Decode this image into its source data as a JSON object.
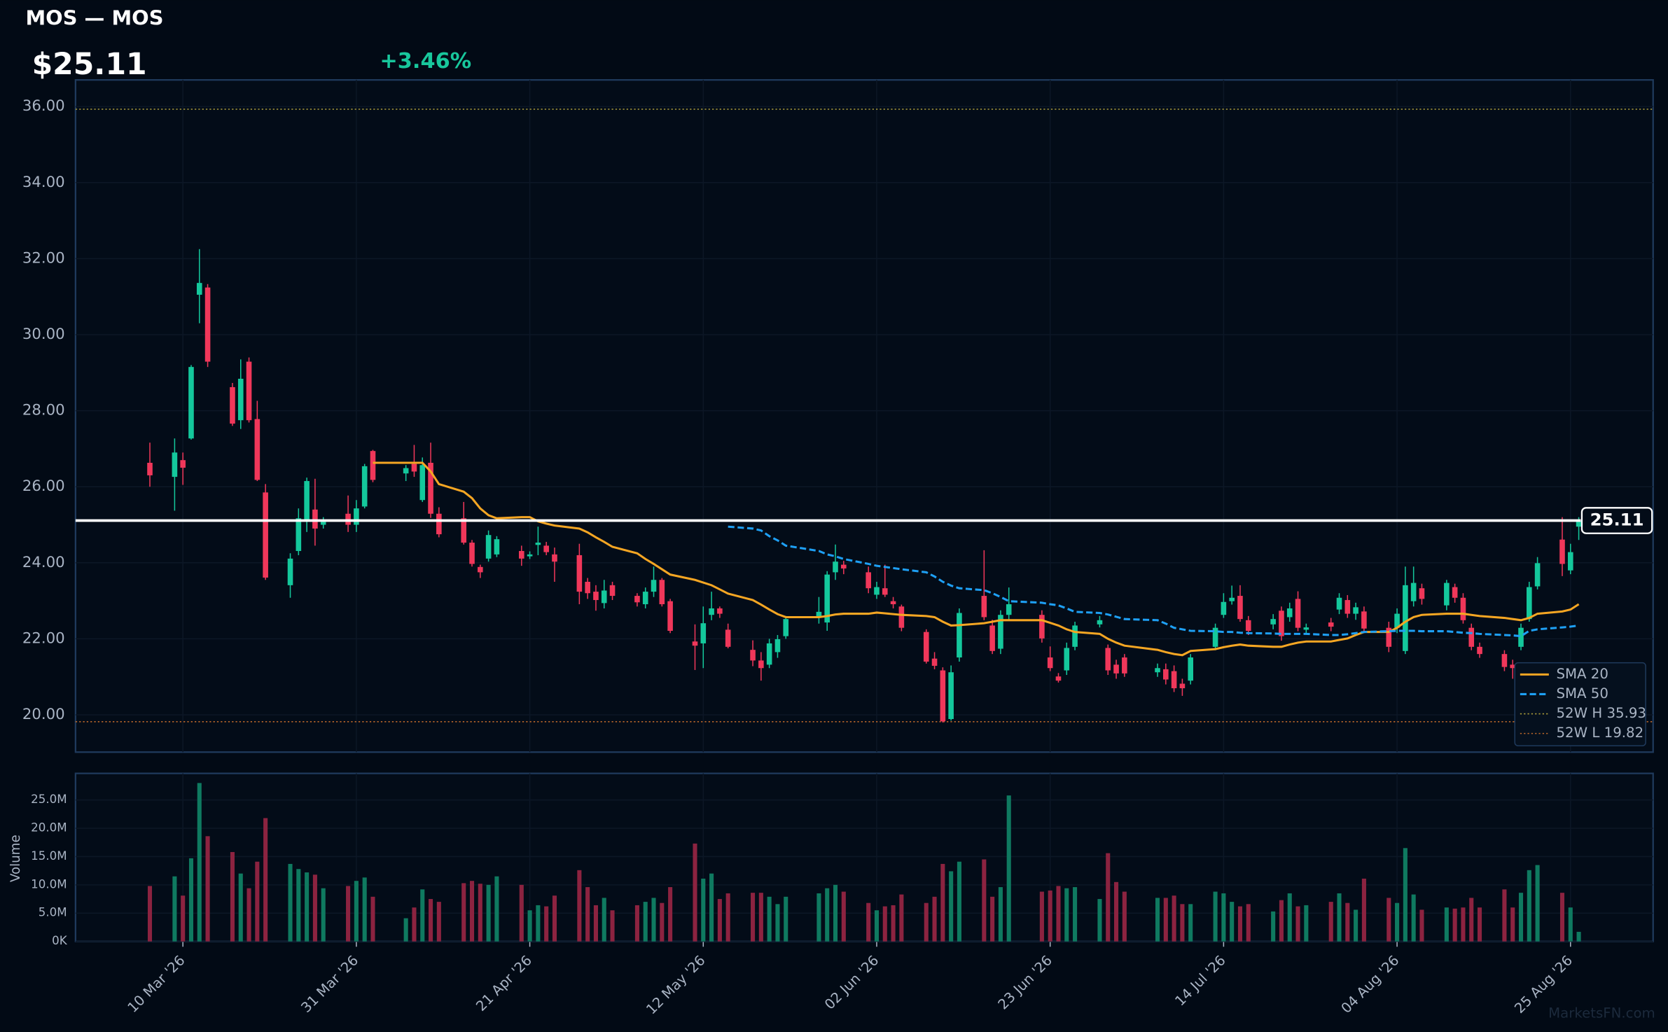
{
  "header": {
    "title": "MOS — MOS",
    "price": "$25.11",
    "change": "+3.46%",
    "watermark": "MarketsFN.com"
  },
  "chart_data": [
    {
      "type": "candlestick",
      "x": [
        "2026-03-06",
        "2026-03-09",
        "2026-03-10",
        "2026-03-11",
        "2026-03-12",
        "2026-03-13",
        "2026-03-16",
        "2026-03-17",
        "2026-03-18",
        "2026-03-19",
        "2026-03-20",
        "2026-03-23",
        "2026-03-24",
        "2026-03-25",
        "2026-03-26",
        "2026-03-27",
        "2026-03-30",
        "2026-03-31",
        "2026-04-01",
        "2026-04-02",
        "2026-04-06",
        "2026-04-07",
        "2026-04-08",
        "2026-04-09",
        "2026-04-10",
        "2026-04-13",
        "2026-04-14",
        "2026-04-15",
        "2026-04-16",
        "2026-04-17",
        "2026-04-20",
        "2026-04-21",
        "2026-04-22",
        "2026-04-23",
        "2026-04-24",
        "2026-04-27",
        "2026-04-28",
        "2026-04-29",
        "2026-04-30",
        "2026-05-01",
        "2026-05-04",
        "2026-05-05",
        "2026-05-06",
        "2026-05-07",
        "2026-05-08",
        "2026-05-11",
        "2026-05-12",
        "2026-05-13",
        "2026-05-14",
        "2026-05-15",
        "2026-05-18",
        "2026-05-19",
        "2026-05-20",
        "2026-05-21",
        "2026-05-22",
        "2026-05-26",
        "2026-05-27",
        "2026-05-28",
        "2026-05-29",
        "2026-06-01",
        "2026-06-02",
        "2026-06-03",
        "2026-06-04",
        "2026-06-05",
        "2026-06-08",
        "2026-06-09",
        "2026-06-10",
        "2026-06-11",
        "2026-06-12",
        "2026-06-15",
        "2026-06-16",
        "2026-06-17",
        "2026-06-18",
        "2026-06-22",
        "2026-06-23",
        "2026-06-24",
        "2026-06-25",
        "2026-06-26",
        "2026-06-29",
        "2026-06-30",
        "2026-07-01",
        "2026-07-02",
        "2026-07-06",
        "2026-07-07",
        "2026-07-08",
        "2026-07-09",
        "2026-07-10",
        "2026-07-13",
        "2026-07-14",
        "2026-07-15",
        "2026-07-16",
        "2026-07-17",
        "2026-07-20",
        "2026-07-21",
        "2026-07-22",
        "2026-07-23",
        "2026-07-24",
        "2026-07-27",
        "2026-07-28",
        "2026-07-29",
        "2026-07-30",
        "2026-07-31",
        "2026-08-03",
        "2026-08-04",
        "2026-08-05",
        "2026-08-06",
        "2026-08-07",
        "2026-08-10",
        "2026-08-11",
        "2026-08-12",
        "2026-08-13",
        "2026-08-14",
        "2026-08-17",
        "2026-08-18",
        "2026-08-19",
        "2026-08-20",
        "2026-08-21",
        "2026-08-24",
        "2026-08-25",
        "2026-08-26"
      ],
      "open": [
        26.63,
        26.26,
        26.7,
        27.27,
        31.05,
        31.24,
        28.62,
        27.75,
        29.29,
        27.78,
        25.85,
        23.41,
        24.31,
        25.09,
        25.4,
        25.0,
        25.29,
        25.0,
        25.48,
        26.94,
        26.35,
        26.6,
        25.65,
        26.63,
        25.29,
        25.17,
        24.53,
        23.89,
        24.11,
        24.22,
        24.31,
        24.17,
        24.47,
        24.45,
        24.22,
        24.2,
        23.5,
        23.24,
        22.94,
        23.41,
        23.13,
        22.91,
        23.24,
        23.55,
        22.99,
        21.93,
        21.88,
        22.63,
        22.8,
        22.24,
        21.71,
        21.43,
        21.32,
        21.65,
        22.07,
        22.57,
        22.43,
        23.75,
        23.95,
        23.75,
        23.16,
        23.33,
        22.99,
        22.85,
        22.18,
        21.48,
        21.17,
        19.89,
        21.51,
        23.13,
        22.35,
        21.74,
        22.63,
        22.63,
        21.51,
        21.01,
        21.17,
        21.79,
        22.38,
        21.76,
        21.32,
        21.51,
        21.12,
        21.2,
        21.15,
        20.82,
        20.9,
        21.79,
        22.63,
        22.99,
        23.13,
        22.49,
        22.38,
        22.74,
        22.57,
        23.05,
        22.24,
        22.43,
        22.77,
        23.02,
        22.66,
        22.72,
        22.29,
        22.29,
        21.68,
        22.99,
        23.33,
        22.88,
        23.36,
        23.08,
        22.29,
        21.79,
        21.6,
        21.32,
        21.79,
        22.52,
        23.38,
        24.61,
        23.8,
        24.95
      ],
      "high": [
        27.16,
        27.27,
        26.9,
        29.2,
        32.25,
        31.33,
        28.73,
        29.35,
        29.4,
        28.26,
        26.07,
        24.25,
        25.43,
        26.24,
        26.21,
        25.2,
        25.77,
        25.65,
        26.6,
        26.97,
        26.57,
        27.1,
        26.77,
        27.16,
        25.46,
        25.6,
        24.6,
        23.95,
        24.85,
        24.7,
        24.45,
        24.3,
        24.95,
        24.55,
        24.4,
        24.5,
        23.6,
        23.41,
        23.55,
        23.5,
        23.2,
        23.35,
        23.9,
        23.6,
        23.05,
        22.38,
        22.85,
        23.24,
        22.85,
        22.4,
        21.96,
        21.65,
        22.0,
        22.1,
        22.6,
        23.1,
        23.78,
        24.48,
        24.05,
        23.9,
        23.5,
        23.95,
        23.1,
        22.9,
        22.25,
        21.65,
        21.25,
        21.3,
        22.8,
        24.33,
        22.5,
        22.75,
        23.35,
        22.75,
        21.8,
        21.1,
        21.9,
        22.45,
        22.6,
        21.85,
        21.45,
        21.6,
        21.35,
        21.35,
        21.3,
        20.95,
        21.6,
        22.4,
        23.2,
        23.4,
        23.41,
        22.6,
        22.65,
        22.85,
        22.95,
        23.25,
        22.4,
        22.55,
        23.2,
        23.15,
        22.95,
        22.85,
        22.45,
        22.8,
        23.9,
        23.9,
        23.45,
        23.55,
        23.45,
        23.2,
        22.4,
        21.9,
        21.7,
        21.45,
        22.4,
        23.5,
        24.15,
        25.2,
        24.5,
        25.2
      ],
      "low": [
        26.0,
        25.37,
        26.05,
        27.24,
        30.3,
        29.15,
        27.6,
        27.52,
        27.69,
        26.15,
        23.55,
        23.08,
        24.2,
        24.81,
        24.45,
        24.9,
        24.81,
        24.81,
        25.43,
        26.12,
        26.15,
        26.26,
        25.6,
        25.18,
        24.67,
        24.48,
        23.9,
        23.6,
        24.03,
        24.15,
        23.92,
        24.1,
        24.2,
        24.2,
        23.5,
        22.91,
        23.05,
        22.74,
        22.8,
        23.02,
        22.85,
        22.8,
        23.1,
        22.85,
        22.15,
        21.18,
        21.23,
        22.49,
        22.55,
        21.75,
        21.28,
        20.9,
        21.23,
        21.5,
        22.0,
        22.4,
        22.21,
        23.55,
        23.7,
        23.2,
        23.05,
        23.1,
        22.8,
        22.2,
        21.35,
        21.2,
        19.8,
        19.85,
        21.4,
        22.49,
        21.6,
        21.6,
        22.5,
        21.9,
        21.15,
        20.85,
        21.05,
        21.7,
        22.3,
        21.05,
        20.95,
        21.0,
        21.0,
        20.8,
        20.6,
        20.5,
        20.8,
        21.7,
        22.55,
        22.9,
        22.45,
        22.1,
        22.25,
        21.95,
        22.45,
        22.2,
        22.15,
        22.2,
        22.65,
        22.55,
        22.5,
        22.15,
        21.65,
        22.15,
        21.6,
        22.85,
        22.9,
        22.75,
        22.95,
        22.4,
        21.7,
        21.5,
        21.15,
        20.95,
        21.7,
        22.45,
        23.3,
        23.65,
        23.7,
        24.6
      ],
      "close": [
        26.3,
        26.9,
        26.5,
        29.15,
        31.36,
        29.29,
        27.66,
        28.84,
        27.75,
        26.18,
        23.61,
        24.11,
        25.17,
        26.15,
        24.9,
        25.08,
        25.0,
        25.43,
        26.54,
        26.18,
        26.49,
        26.4,
        26.57,
        25.29,
        24.75,
        24.53,
        23.97,
        23.75,
        24.73,
        24.62,
        24.11,
        24.22,
        24.53,
        24.28,
        24.03,
        23.24,
        23.2,
        23.02,
        23.27,
        23.13,
        22.96,
        23.24,
        23.55,
        22.91,
        22.21,
        21.82,
        22.41,
        22.8,
        22.66,
        21.79,
        21.43,
        21.23,
        21.88,
        21.99,
        22.52,
        22.71,
        23.69,
        24.03,
        23.85,
        23.33,
        23.36,
        23.16,
        22.91,
        22.29,
        21.4,
        21.29,
        19.83,
        21.12,
        22.68,
        22.57,
        21.68,
        22.63,
        22.91,
        22.01,
        21.23,
        20.9,
        21.76,
        22.35,
        22.49,
        21.17,
        21.09,
        21.09,
        21.23,
        20.93,
        20.7,
        20.7,
        21.51,
        22.29,
        22.97,
        23.08,
        22.52,
        22.21,
        22.52,
        22.07,
        22.8,
        22.29,
        22.3,
        22.32,
        23.08,
        22.66,
        22.83,
        22.27,
        21.79,
        22.66,
        23.41,
        23.47,
        23.05,
        23.47,
        23.08,
        22.49,
        21.79,
        21.6,
        21.26,
        21.23,
        22.29,
        23.36,
        23.99,
        23.97,
        24.28,
        25.11
      ],
      "up_color": "#14c89c",
      "down_color": "#f0375a",
      "series": [
        {
          "name": "SMA 20",
          "color": "#f5a623",
          "style": "solid",
          "values": [
            null,
            null,
            null,
            null,
            null,
            null,
            null,
            null,
            null,
            null,
            null,
            null,
            null,
            null,
            null,
            null,
            null,
            null,
            null,
            26.63,
            26.63,
            26.63,
            26.63,
            26.4,
            26.07,
            25.87,
            25.7,
            25.43,
            25.25,
            25.17,
            25.2,
            25.2,
            25.09,
            25.03,
            24.98,
            24.9,
            24.8,
            24.67,
            24.55,
            24.42,
            24.25,
            24.1,
            23.97,
            23.83,
            23.69,
            23.55,
            23.48,
            23.41,
            23.3,
            23.19,
            23.02,
            22.9,
            22.77,
            22.65,
            22.57,
            22.57,
            22.6,
            22.64,
            22.66,
            22.66,
            22.69,
            22.67,
            22.65,
            22.63,
            22.6,
            22.57,
            22.45,
            22.35,
            22.36,
            22.41,
            22.45,
            22.49,
            22.49,
            22.49,
            22.42,
            22.35,
            22.25,
            22.18,
            22.13,
            22.0,
            21.9,
            21.82,
            21.71,
            21.65,
            21.6,
            21.57,
            21.68,
            21.73,
            21.78,
            21.82,
            21.85,
            21.82,
            21.79,
            21.79,
            21.85,
            21.9,
            21.93,
            21.93,
            21.97,
            22.01,
            22.1,
            22.18,
            22.18,
            22.29,
            22.45,
            22.57,
            22.63,
            22.66,
            22.66,
            22.66,
            22.63,
            22.6,
            22.55,
            22.52,
            22.49,
            22.55,
            22.66,
            22.72,
            22.77,
            22.91
          ]
        },
        {
          "name": "SMA 50",
          "color": "#1ea0f5",
          "style": "dashed",
          "values": [
            null,
            null,
            null,
            null,
            null,
            null,
            null,
            null,
            null,
            null,
            null,
            null,
            null,
            null,
            null,
            null,
            null,
            null,
            null,
            null,
            null,
            null,
            null,
            null,
            null,
            null,
            null,
            null,
            null,
            null,
            null,
            null,
            null,
            null,
            null,
            null,
            null,
            null,
            null,
            null,
            null,
            null,
            null,
            null,
            null,
            null,
            null,
            null,
            null,
            24.95,
            24.9,
            24.85,
            24.7,
            24.59,
            24.45,
            24.31,
            24.22,
            24.17,
            24.1,
            23.97,
            23.92,
            23.89,
            23.86,
            23.83,
            23.75,
            23.64,
            23.5,
            23.4,
            23.33,
            23.28,
            23.2,
            23.1,
            22.99,
            22.95,
            22.91,
            22.88,
            22.8,
            22.71,
            22.68,
            22.64,
            22.58,
            22.52,
            22.49,
            22.4,
            22.29,
            22.25,
            22.21,
            22.2,
            22.18,
            22.18,
            22.16,
            22.15,
            22.14,
            22.13,
            22.13,
            22.13,
            22.13,
            22.1,
            22.1,
            22.12,
            22.15,
            22.18,
            22.2,
            22.21,
            22.21,
            22.21,
            22.2,
            22.2,
            22.18,
            22.16,
            22.15,
            22.13,
            22.1,
            22.09,
            22.07,
            22.21,
            22.25,
            22.3,
            22.32,
            22.35
          ]
        }
      ],
      "reference_lines": [
        {
          "name": "52W H 35.93",
          "value": 35.93,
          "color": "#a89a3a",
          "style": "dotted"
        },
        {
          "name": "52W L 19.82",
          "value": 19.82,
          "color": "#b8652a",
          "style": "dotted"
        }
      ],
      "last_price": 25.11,
      "xlim": [
        "2026-02-25",
        "2026-09-04"
      ],
      "xticks": [
        {
          "value": "2026-03-10",
          "label": "10 Mar '26"
        },
        {
          "value": "2026-03-31",
          "label": "31 Mar '26"
        },
        {
          "value": "2026-04-21",
          "label": "21 Apr '26"
        },
        {
          "value": "2026-05-12",
          "label": "12 May '26"
        },
        {
          "value": "2026-06-02",
          "label": "02 Jun '26"
        },
        {
          "value": "2026-06-23",
          "label": "23 Jun '26"
        },
        {
          "value": "2026-07-14",
          "label": "14 Jul '26"
        },
        {
          "value": "2026-08-04",
          "label": "04 Aug '26"
        },
        {
          "value": "2026-08-25",
          "label": "25 Aug '26"
        }
      ],
      "ylim": [
        19.02,
        36.7
      ],
      "yticks": [
        {
          "value": 20,
          "label": "20.00"
        },
        {
          "value": 22,
          "label": "22.00"
        },
        {
          "value": 24,
          "label": "24.00"
        },
        {
          "value": 26,
          "label": "26.00"
        },
        {
          "value": 28,
          "label": "28.00"
        },
        {
          "value": 30,
          "label": "30.00"
        },
        {
          "value": 32,
          "label": "32.00"
        },
        {
          "value": 34,
          "label": "34.00"
        },
        {
          "value": 36,
          "label": "36.00"
        }
      ],
      "grid": true,
      "legend": "lower right"
    },
    {
      "type": "bar",
      "ylabel": "Volume",
      "up_color": "#0f7a60",
      "down_color": "#8c2340",
      "values": [
        9800000,
        11500000,
        8100000,
        14700000,
        28000000,
        18600000,
        15800000,
        12000000,
        9400000,
        14100000,
        21800000,
        13700000,
        12800000,
        12200000,
        11800000,
        9400000,
        9800000,
        10700000,
        11300000,
        7900000,
        4100000,
        6000000,
        9200000,
        7500000,
        7000000,
        10300000,
        10700000,
        10200000,
        10000000,
        11500000,
        10000000,
        5500000,
        6400000,
        6200000,
        8100000,
        12600000,
        9600000,
        6400000,
        7700000,
        5500000,
        6400000,
        7000000,
        7700000,
        6800000,
        9600000,
        17300000,
        11100000,
        12000000,
        7500000,
        8500000,
        8600000,
        8600000,
        7900000,
        6600000,
        7900000,
        8500000,
        9400000,
        10000000,
        8800000,
        6800000,
        5500000,
        6200000,
        6400000,
        8300000,
        6800000,
        7900000,
        13700000,
        12400000,
        14100000,
        14500000,
        7900000,
        9600000,
        25800000,
        8800000,
        9000000,
        9800000,
        9400000,
        9600000,
        7500000,
        15600000,
        10500000,
        8800000,
        7700000,
        7700000,
        8100000,
        6600000,
        6600000,
        8800000,
        8500000,
        7000000,
        6200000,
        6600000,
        5300000,
        7300000,
        8500000,
        6200000,
        6400000,
        7000000,
        8500000,
        6800000,
        5600000,
        11100000,
        7700000,
        6800000,
        16500000,
        8300000,
        5600000,
        6000000,
        5800000,
        6000000,
        7700000,
        6000000,
        9200000,
        6000000,
        8600000,
        12600000,
        13500000,
        8600000,
        6000000,
        1700000
      ],
      "ylim": [
        0,
        29700000
      ],
      "yticks": [
        {
          "value": 0,
          "label": "0K"
        },
        {
          "value": 5000000,
          "label": "5.0M"
        },
        {
          "value": 10000000,
          "label": "10.0M"
        },
        {
          "value": 15000000,
          "label": "15.0M"
        },
        {
          "value": 20000000,
          "label": "20.0M"
        },
        {
          "value": 25000000,
          "label": "25.0M"
        }
      ],
      "grid": true
    }
  ]
}
